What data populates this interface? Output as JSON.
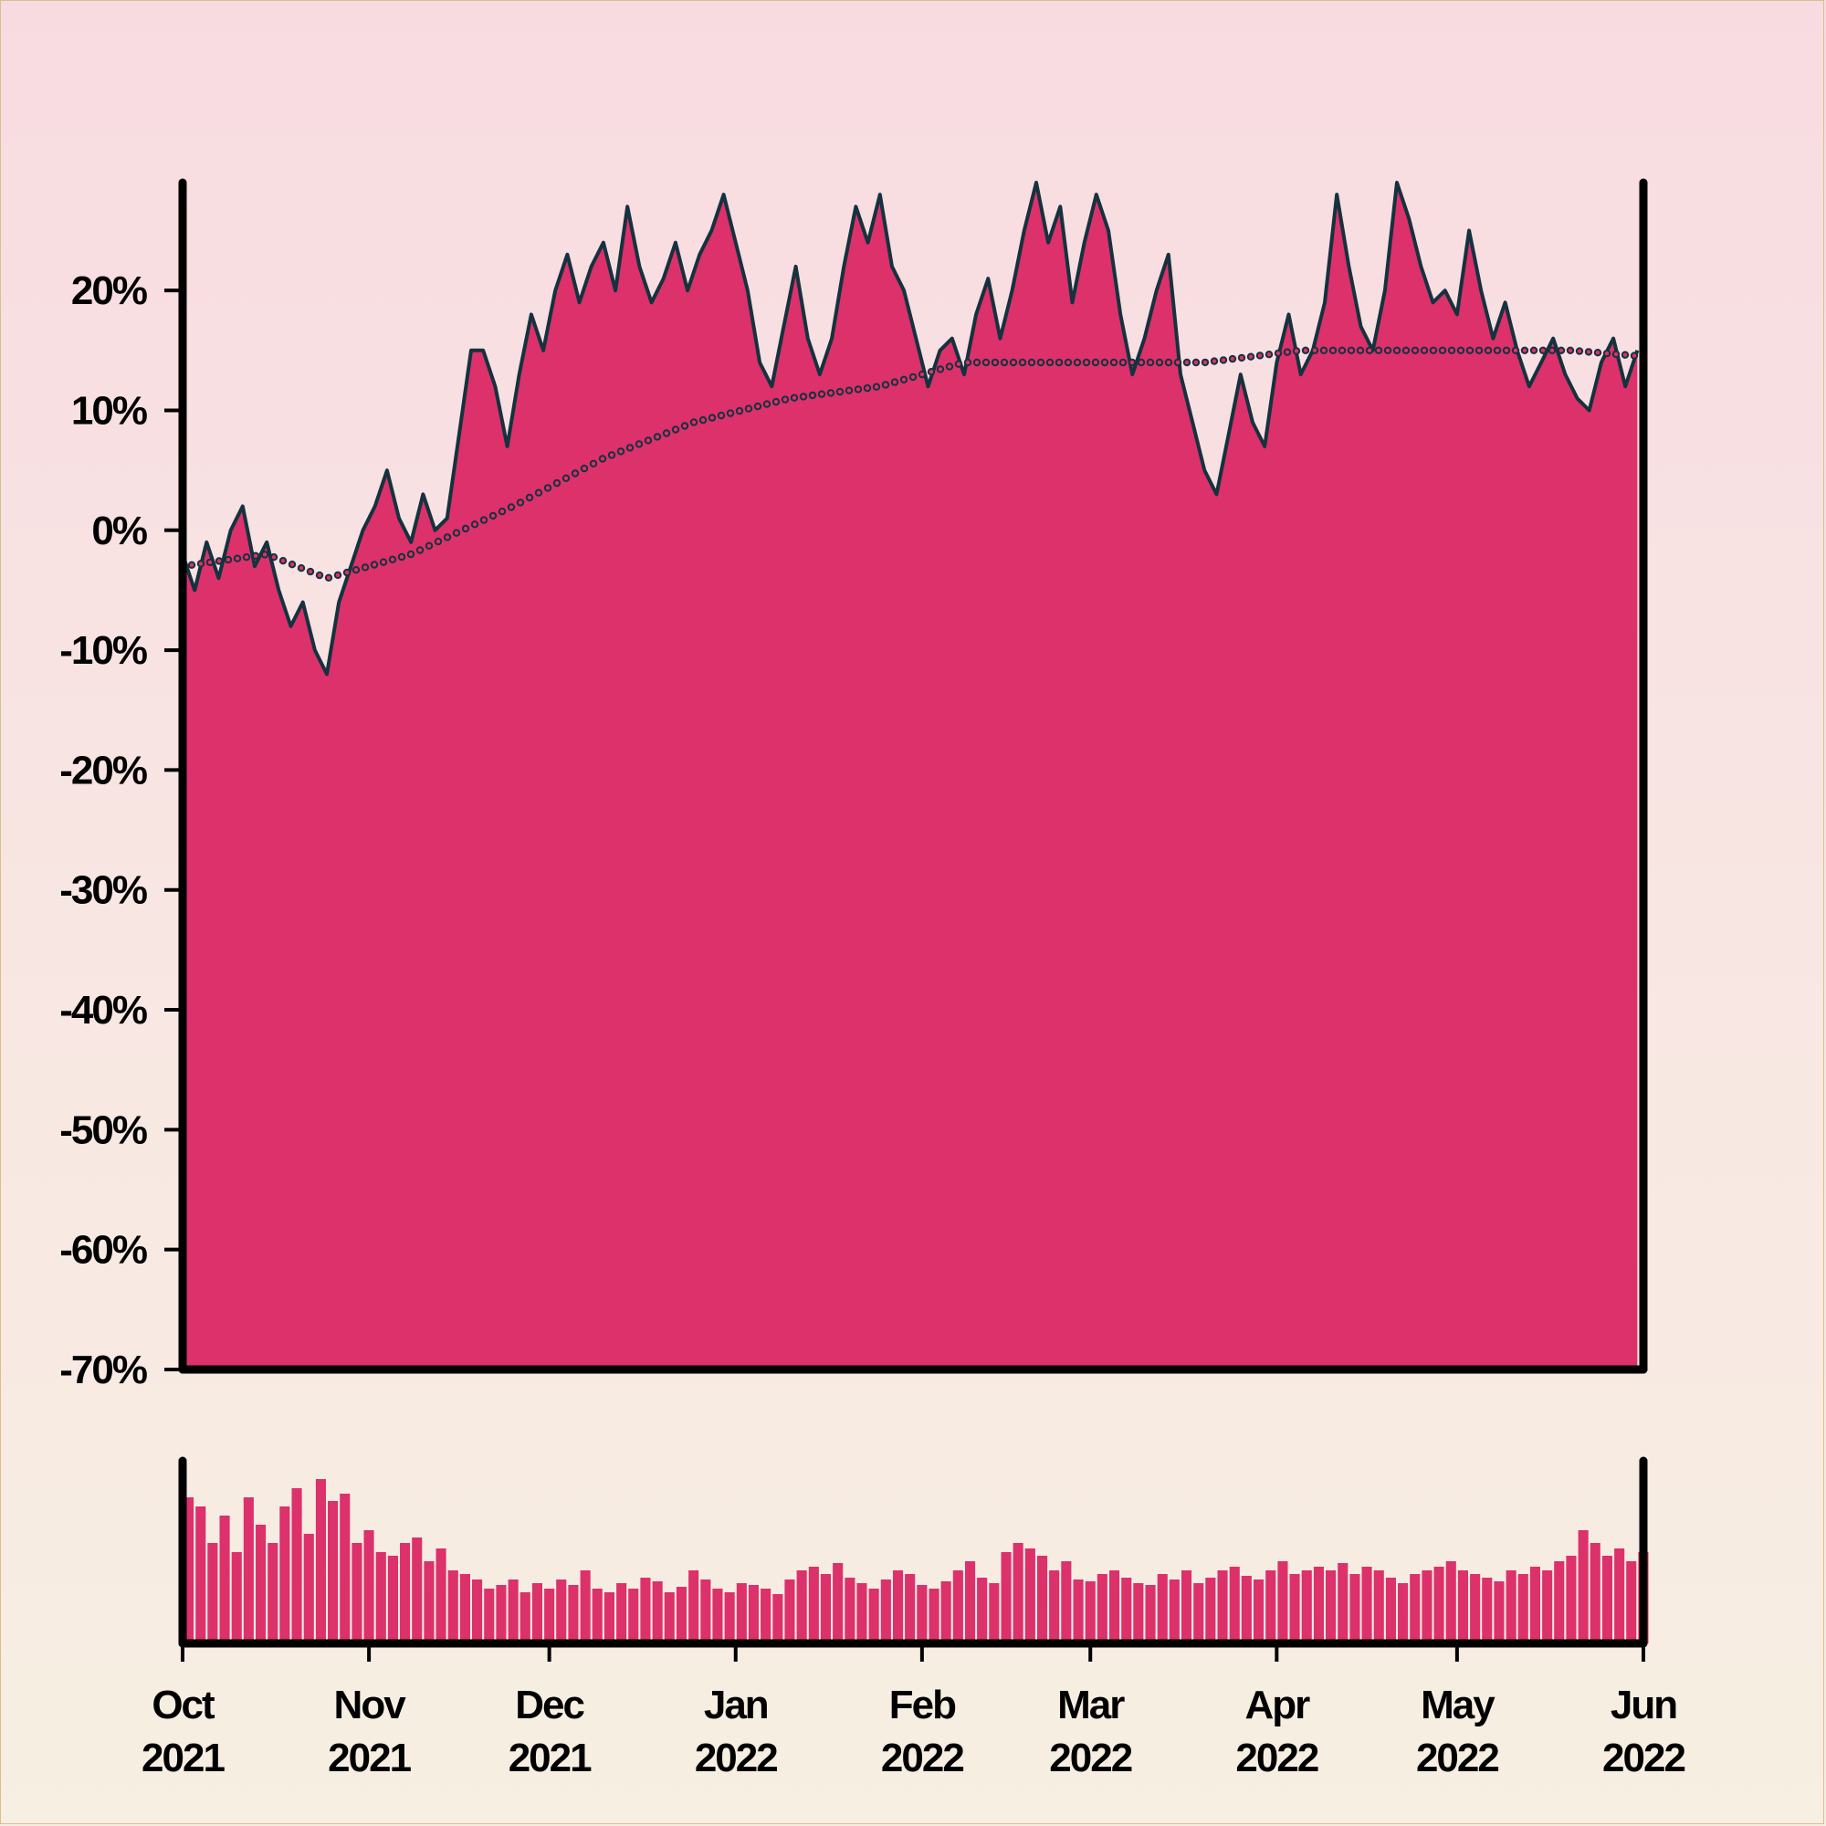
{
  "chart_data": [
    {
      "type": "area",
      "panel": "main",
      "title": "",
      "xlabel": "",
      "ylabel": "",
      "y_unit": "%",
      "ylim": [
        -70,
        29
      ],
      "xlim": [
        "2021-10-01",
        "2022-06-01"
      ],
      "y_ticks": [
        -70,
        -60,
        -50,
        -40,
        -30,
        -20,
        -10,
        0,
        10,
        20
      ],
      "y_tick_labels": [
        "-70%",
        "-60%",
        "-50%",
        "-40%",
        "-30%",
        "-20%",
        "-10%",
        "0%",
        "10%",
        "20%"
      ],
      "x_ticks": [
        {
          "date": "2021-10-01",
          "month": "Oct",
          "year": "2021"
        },
        {
          "date": "2021-11-01",
          "month": "Nov",
          "year": "2021"
        },
        {
          "date": "2021-12-01",
          "month": "Dec",
          "year": "2021"
        },
        {
          "date": "2022-01-01",
          "month": "Jan",
          "year": "2022"
        },
        {
          "date": "2022-02-01",
          "month": "Feb",
          "year": "2022"
        },
        {
          "date": "2022-03-01",
          "month": "Mar",
          "year": "2022"
        },
        {
          "date": "2022-04-01",
          "month": "Apr",
          "year": "2022"
        },
        {
          "date": "2022-05-01",
          "month": "May",
          "year": "2022"
        },
        {
          "date": "2022-06-01",
          "month": "Jun",
          "year": "2022"
        }
      ],
      "grid": false,
      "series": [
        {
          "style": "filled area with line",
          "x": [
            "2021-10-01",
            "2021-10-03",
            "2021-10-05",
            "2021-10-07",
            "2021-10-09",
            "2021-10-11",
            "2021-10-13",
            "2021-10-15",
            "2021-10-17",
            "2021-10-19",
            "2021-10-21",
            "2021-10-23",
            "2021-10-25",
            "2021-10-27",
            "2021-10-29",
            "2021-10-31",
            "2021-11-02",
            "2021-11-04",
            "2021-11-06",
            "2021-11-08",
            "2021-11-10",
            "2021-11-12",
            "2021-11-14",
            "2021-11-16",
            "2021-11-18",
            "2021-11-20",
            "2021-11-22",
            "2021-11-24",
            "2021-11-26",
            "2021-11-28",
            "2021-11-30",
            "2021-12-02",
            "2021-12-04",
            "2021-12-06",
            "2021-12-08",
            "2021-12-10",
            "2021-12-12",
            "2021-12-14",
            "2021-12-16",
            "2021-12-18",
            "2021-12-20",
            "2021-12-22",
            "2021-12-24",
            "2021-12-26",
            "2021-12-28",
            "2021-12-30",
            "2022-01-01",
            "2022-01-03",
            "2022-01-05",
            "2022-01-07",
            "2022-01-09",
            "2022-01-11",
            "2022-01-13",
            "2022-01-15",
            "2022-01-17",
            "2022-01-19",
            "2022-01-21",
            "2022-01-23",
            "2022-01-25",
            "2022-01-27",
            "2022-01-29",
            "2022-01-31",
            "2022-02-02",
            "2022-02-04",
            "2022-02-06",
            "2022-02-08",
            "2022-02-10",
            "2022-02-12",
            "2022-02-14",
            "2022-02-16",
            "2022-02-18",
            "2022-02-20",
            "2022-02-22",
            "2022-02-24",
            "2022-02-26",
            "2022-02-28",
            "2022-03-02",
            "2022-03-04",
            "2022-03-06",
            "2022-03-08",
            "2022-03-10",
            "2022-03-12",
            "2022-03-14",
            "2022-03-16",
            "2022-03-18",
            "2022-03-20",
            "2022-03-22",
            "2022-03-24",
            "2022-03-26",
            "2022-03-28",
            "2022-03-30",
            "2022-04-01",
            "2022-04-03",
            "2022-04-05",
            "2022-04-07",
            "2022-04-09",
            "2022-04-11",
            "2022-04-13",
            "2022-04-15",
            "2022-04-17",
            "2022-04-19",
            "2022-04-21",
            "2022-04-23",
            "2022-04-25",
            "2022-04-27",
            "2022-04-29",
            "2022-05-01",
            "2022-05-03",
            "2022-05-05",
            "2022-05-07",
            "2022-05-09",
            "2022-05-11",
            "2022-05-13",
            "2022-05-15",
            "2022-05-17",
            "2022-05-19",
            "2022-05-21",
            "2022-05-23",
            "2022-05-25",
            "2022-05-27",
            "2022-05-29",
            "2022-05-31"
          ],
          "values": [
            -2,
            -5,
            -1,
            -4,
            0,
            2,
            -3,
            -1,
            -5,
            -8,
            -6,
            -10,
            -12,
            -6,
            -3,
            0,
            2,
            5,
            1,
            -1,
            3,
            0,
            1,
            8,
            15,
            15,
            12,
            7,
            13,
            18,
            15,
            20,
            23,
            19,
            22,
            24,
            20,
            27,
            22,
            19,
            21,
            24,
            20,
            23,
            25,
            28,
            24,
            20,
            14,
            12,
            17,
            22,
            16,
            13,
            16,
            22,
            27,
            24,
            28,
            22,
            20,
            16,
            12,
            15,
            16,
            13,
            18,
            21,
            16,
            20,
            25,
            29,
            24,
            27,
            19,
            24,
            28,
            25,
            18,
            13,
            16,
            20,
            23,
            13,
            9,
            5,
            3,
            8,
            13,
            9,
            7,
            14,
            18,
            13,
            15,
            19,
            28,
            22,
            17,
            15,
            20,
            29,
            26,
            22,
            19,
            20,
            18,
            25,
            20,
            16,
            19,
            15,
            12,
            14,
            16,
            13,
            11,
            10,
            14,
            16,
            12,
            15
          ]
        },
        {
          "style": "dotted line",
          "x": [
            "2021-10-01",
            "2021-10-15",
            "2021-10-25",
            "2021-11-08",
            "2021-11-25",
            "2021-12-10",
            "2021-12-25",
            "2022-01-10",
            "2022-01-25",
            "2022-02-08",
            "2022-02-20",
            "2022-03-05",
            "2022-03-20",
            "2022-04-05",
            "2022-04-20",
            "2022-05-05",
            "2022-05-20",
            "2022-06-01"
          ],
          "values": [
            -3,
            -2,
            -4,
            -2,
            2,
            6,
            9,
            11,
            12,
            14,
            14,
            14,
            14,
            15,
            15,
            15,
            15,
            14.5
          ]
        }
      ]
    },
    {
      "type": "bar",
      "panel": "volume",
      "title": "",
      "xlabel": "",
      "ylabel": "",
      "y_ticks": [],
      "xlim": [
        "2021-10-01",
        "2022-06-01"
      ],
      "ylim": [
        0,
        1
      ],
      "x": [
        "2021-10-01",
        "2021-10-03",
        "2021-10-05",
        "2021-10-07",
        "2021-10-09",
        "2021-10-11",
        "2021-10-13",
        "2021-10-15",
        "2021-10-17",
        "2021-10-19",
        "2021-10-21",
        "2021-10-23",
        "2021-10-25",
        "2021-10-27",
        "2021-10-29",
        "2021-10-31",
        "2021-11-02",
        "2021-11-04",
        "2021-11-06",
        "2021-11-08",
        "2021-11-10",
        "2021-11-12",
        "2021-11-14",
        "2021-11-16",
        "2021-11-18",
        "2021-11-20",
        "2021-11-22",
        "2021-11-24",
        "2021-11-26",
        "2021-11-28",
        "2021-11-30",
        "2021-12-02",
        "2021-12-04",
        "2021-12-06",
        "2021-12-08",
        "2021-12-10",
        "2021-12-12",
        "2021-12-14",
        "2021-12-16",
        "2021-12-18",
        "2021-12-20",
        "2021-12-22",
        "2021-12-24",
        "2021-12-26",
        "2021-12-28",
        "2021-12-30",
        "2022-01-01",
        "2022-01-03",
        "2022-01-05",
        "2022-01-07",
        "2022-01-09",
        "2022-01-11",
        "2022-01-13",
        "2022-01-15",
        "2022-01-17",
        "2022-01-19",
        "2022-01-21",
        "2022-01-23",
        "2022-01-25",
        "2022-01-27",
        "2022-01-29",
        "2022-01-31",
        "2022-02-02",
        "2022-02-04",
        "2022-02-06",
        "2022-02-08",
        "2022-02-10",
        "2022-02-12",
        "2022-02-14",
        "2022-02-16",
        "2022-02-18",
        "2022-02-20",
        "2022-02-22",
        "2022-02-24",
        "2022-02-26",
        "2022-02-28",
        "2022-03-02",
        "2022-03-04",
        "2022-03-06",
        "2022-03-08",
        "2022-03-10",
        "2022-03-12",
        "2022-03-14",
        "2022-03-16",
        "2022-03-18",
        "2022-03-20",
        "2022-03-22",
        "2022-03-24",
        "2022-03-26",
        "2022-03-28",
        "2022-03-30",
        "2022-04-01",
        "2022-04-03",
        "2022-04-05",
        "2022-04-07",
        "2022-04-09",
        "2022-04-11",
        "2022-04-13",
        "2022-04-15",
        "2022-04-17",
        "2022-04-19",
        "2022-04-21",
        "2022-04-23",
        "2022-04-25",
        "2022-04-27",
        "2022-04-29",
        "2022-05-01",
        "2022-05-03",
        "2022-05-05",
        "2022-05-07",
        "2022-05-09",
        "2022-05-11",
        "2022-05-13",
        "2022-05-15",
        "2022-05-17",
        "2022-05-19",
        "2022-05-21",
        "2022-05-23",
        "2022-05-25",
        "2022-05-27",
        "2022-05-29",
        "2022-05-31"
      ],
      "values": [
        0.8,
        0.75,
        0.55,
        0.7,
        0.5,
        0.8,
        0.65,
        0.55,
        0.75,
        0.85,
        0.6,
        0.9,
        0.78,
        0.82,
        0.55,
        0.62,
        0.5,
        0.48,
        0.55,
        0.58,
        0.45,
        0.52,
        0.4,
        0.38,
        0.35,
        0.3,
        0.32,
        0.35,
        0.28,
        0.33,
        0.3,
        0.35,
        0.32,
        0.4,
        0.3,
        0.28,
        0.33,
        0.3,
        0.36,
        0.34,
        0.28,
        0.31,
        0.4,
        0.35,
        0.3,
        0.28,
        0.33,
        0.32,
        0.3,
        0.27,
        0.35,
        0.4,
        0.42,
        0.38,
        0.44,
        0.36,
        0.33,
        0.3,
        0.35,
        0.4,
        0.38,
        0.32,
        0.3,
        0.34,
        0.4,
        0.45,
        0.36,
        0.33,
        0.5,
        0.55,
        0.52,
        0.48,
        0.4,
        0.45,
        0.35,
        0.34,
        0.38,
        0.4,
        0.36,
        0.33,
        0.32,
        0.38,
        0.35,
        0.4,
        0.33,
        0.36,
        0.4,
        0.42,
        0.37,
        0.35,
        0.4,
        0.45,
        0.38,
        0.4,
        0.42,
        0.4,
        0.44,
        0.38,
        0.42,
        0.4,
        0.36,
        0.33,
        0.38,
        0.4,
        0.42,
        0.45,
        0.4,
        0.38,
        0.36,
        0.34,
        0.4,
        0.38,
        0.42,
        0.4,
        0.45,
        0.48,
        0.62,
        0.55,
        0.48,
        0.52,
        0.45,
        0.5
      ]
    }
  ],
  "colors": {
    "area_fill": "#dc316b",
    "line": "#15323e",
    "axis": "#000000",
    "page_border": "#d9c089"
  }
}
